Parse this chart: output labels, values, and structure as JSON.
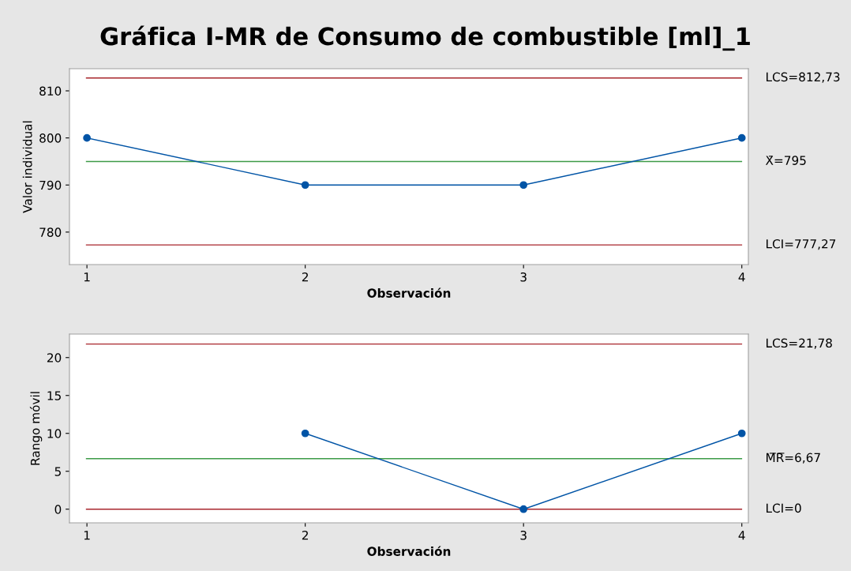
{
  "chart_data": [
    {
      "type": "line",
      "title": "Gráfica I-MR de Consumo de combustible [ml]_1",
      "xlabel": "Observación",
      "ylabel": "Valor individual",
      "x": [
        1,
        2,
        3,
        4
      ],
      "series": [
        {
          "color": "#0054a6",
          "values": [
            800,
            790,
            790,
            800
          ]
        }
      ],
      "xlim": [
        0.92,
        4.03
      ],
      "xticks": [
        1,
        2,
        3,
        4
      ],
      "ylim": [
        773.1,
        814.7
      ],
      "yticks": [
        780,
        790,
        800,
        810
      ],
      "marker": "circle",
      "line_style": "solid",
      "grid": false,
      "ref_lines": [
        {
          "axis": "y",
          "value": 812.73,
          "label": "LCS=812,73",
          "color": "#a8262c"
        },
        {
          "axis": "y",
          "value": 795,
          "label": "X̄=795",
          "color": "#3d9b48"
        },
        {
          "axis": "y",
          "value": 777.27,
          "label": "LCI=777,27",
          "color": "#a8262c"
        }
      ]
    },
    {
      "type": "line",
      "xlabel": "Observación",
      "ylabel": "Rango móvil",
      "series": [
        {
          "color": "#0054a6",
          "x": [
            2,
            3,
            4
          ],
          "values": [
            10,
            0,
            10
          ]
        }
      ],
      "xlim": [
        0.92,
        4.03
      ],
      "xticks": [
        1,
        2,
        3,
        4
      ],
      "ylim": [
        -1.8,
        23.1
      ],
      "yticks": [
        0,
        5,
        10,
        15,
        20
      ],
      "marker": "circle",
      "line_style": "solid",
      "grid": false,
      "ref_lines": [
        {
          "axis": "y",
          "value": 21.78,
          "label": "LCS=21,78",
          "color": "#a8262c"
        },
        {
          "axis": "y",
          "value": 6.67,
          "label": "M̅R̅=6,67",
          "color": "#3d9b48"
        },
        {
          "axis": "y",
          "value": 0,
          "label": "LCI=0",
          "color": "#a8262c"
        }
      ]
    }
  ]
}
